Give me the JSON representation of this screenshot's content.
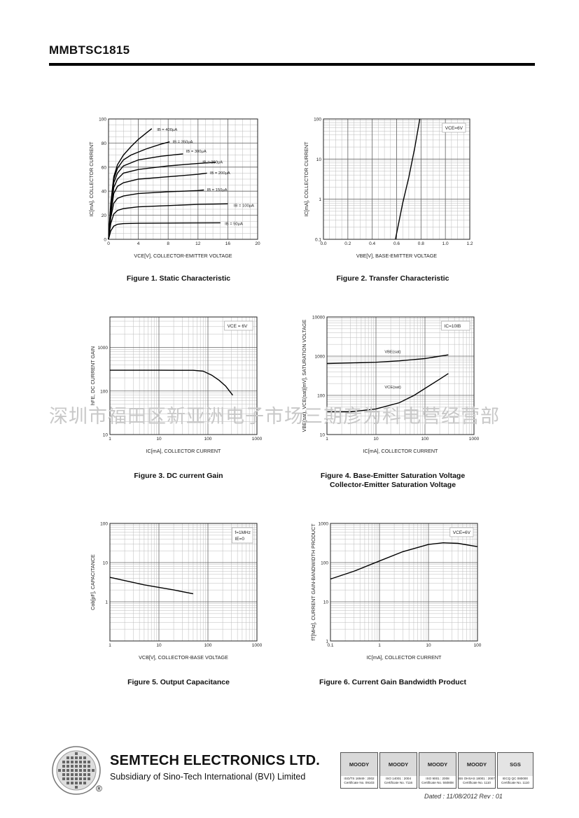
{
  "page": {
    "part_number": "MMBTSC1815"
  },
  "watermark": "深圳市福田区新亚洲电子市场三期彦为科电营经营部",
  "charts": [
    {
      "type": "line",
      "title": "Figure 1. Static Characteristic",
      "xlabel": "V_CE[V], COLLECTOR-EMITTER VOLTAGE",
      "ylabel": "I_C[mA], COLLECTOR CURRENT",
      "xscale": "linear",
      "yscale": "linear",
      "xlim": [
        0,
        20
      ],
      "ylim": [
        0,
        100
      ],
      "xticks": [
        0,
        4,
        8,
        12,
        16,
        20
      ],
      "yticks": [
        0,
        20,
        40,
        60,
        80,
        100
      ],
      "grid": true,
      "series": [
        {
          "name": "I_B = 400μA",
          "points": [
            [
              0,
              0
            ],
            [
              0.3,
              30
            ],
            [
              0.7,
              52
            ],
            [
              1.2,
              62
            ],
            [
              2,
              70
            ],
            [
              3,
              77
            ],
            [
              4,
              83
            ],
            [
              5,
              88
            ],
            [
              5.8,
              92
            ]
          ],
          "label_at": [
            6.5,
            90
          ]
        },
        {
          "name": "I_B = 350μA",
          "points": [
            [
              0,
              0
            ],
            [
              0.3,
              28
            ],
            [
              0.7,
              50
            ],
            [
              1.2,
              59
            ],
            [
              2,
              66
            ],
            [
              3,
              70
            ],
            [
              5,
              75
            ],
            [
              7,
              79
            ],
            [
              8.2,
              81
            ]
          ],
          "label_at": [
            8.6,
            80
          ]
        },
        {
          "name": "I_B = 300μA",
          "points": [
            [
              0,
              0
            ],
            [
              0.3,
              26
            ],
            [
              0.7,
              47
            ],
            [
              1.2,
              55
            ],
            [
              2,
              61
            ],
            [
              4,
              66
            ],
            [
              7,
              69
            ],
            [
              10,
              71
            ]
          ],
          "label_at": [
            10.4,
            72
          ]
        },
        {
          "name": "I_B = 250μA",
          "points": [
            [
              0,
              0
            ],
            [
              0.3,
              24
            ],
            [
              0.7,
              43
            ],
            [
              1.2,
              50
            ],
            [
              2,
              55
            ],
            [
              4,
              58
            ],
            [
              8,
              61
            ],
            [
              12,
              63
            ],
            [
              14.4,
              64
            ]
          ],
          "label_at": [
            12.6,
            63
          ]
        },
        {
          "name": "I_B = 200μA",
          "points": [
            [
              0,
              0
            ],
            [
              0.3,
              21
            ],
            [
              0.7,
              38
            ],
            [
              1.2,
              44
            ],
            [
              2,
              47
            ],
            [
              4,
              50
            ],
            [
              8,
              52
            ],
            [
              12,
              54
            ],
            [
              13.2,
              55
            ]
          ],
          "label_at": [
            13.6,
            54
          ]
        },
        {
          "name": "I_B = 150μA",
          "points": [
            [
              0,
              0
            ],
            [
              0.3,
              18
            ],
            [
              0.7,
              30
            ],
            [
              1.2,
              34
            ],
            [
              2,
              36
            ],
            [
              4,
              38
            ],
            [
              8,
              39.5
            ],
            [
              12,
              40.5
            ],
            [
              12.8,
              41
            ]
          ],
          "label_at": [
            13.2,
            40
          ]
        },
        {
          "name": "I_B = 100μA",
          "points": [
            [
              0,
              0
            ],
            [
              0.3,
              13
            ],
            [
              0.7,
              21
            ],
            [
              1.2,
              24
            ],
            [
              2,
              25.5
            ],
            [
              4,
              27
            ],
            [
              8,
              28
            ],
            [
              12,
              29
            ],
            [
              16,
              29.5
            ]
          ],
          "label_at": [
            16.8,
            27
          ]
        },
        {
          "name": "I_B = 50μA",
          "points": [
            [
              0,
              0
            ],
            [
              0.3,
              7
            ],
            [
              0.7,
              11
            ],
            [
              1.2,
              12.5
            ],
            [
              2,
              13
            ],
            [
              4,
              13.3
            ],
            [
              8,
              13.5
            ],
            [
              12,
              13.6
            ],
            [
              15,
              13.7
            ]
          ],
          "label_at": [
            15.6,
            12
          ]
        }
      ]
    },
    {
      "type": "line",
      "title": "Figure 2. Transfer Characteristic",
      "xlabel": "V_BE[V], BASE-EMITTER VOLTAGE",
      "ylabel": "I_C[mA], COLLECTOR CURRENT",
      "xscale": "linear",
      "yscale": "log",
      "xlim": [
        0,
        1.2
      ],
      "ylim": [
        0.1,
        100
      ],
      "xticks": [
        0,
        0.2,
        0.4,
        0.6,
        0.8,
        1.0,
        1.2
      ],
      "xtick_labels": [
        "0.0",
        "0.2",
        "0.4",
        "0.6",
        "0.8",
        "1.0",
        "1.2"
      ],
      "yticks": [
        0.1,
        1,
        10,
        100
      ],
      "ytick_labels": [
        "0.1",
        "1",
        "10",
        "100"
      ],
      "grid": true,
      "annotation": "V_CE=6V",
      "series": [
        {
          "name": "I_C",
          "points": [
            [
              0.59,
              0.1
            ],
            [
              0.65,
              0.8
            ],
            [
              0.7,
              3.5
            ],
            [
              0.75,
              20
            ],
            [
              0.79,
              100
            ]
          ]
        }
      ]
    },
    {
      "type": "line",
      "title": "Figure 3. DC current Gain",
      "xlabel": "I_C[mA], COLLECTOR CURRENT",
      "ylabel": "h_FE, DC CURRENT GAIN",
      "xscale": "log",
      "yscale": "log",
      "xlim": [
        1,
        1000
      ],
      "ylim": [
        10,
        5000
      ],
      "xticks": [
        1,
        10,
        100,
        1000
      ],
      "xtick_labels": [
        "1",
        "10",
        "100",
        "1000"
      ],
      "yticks": [
        10,
        100,
        1000
      ],
      "ytick_labels": [
        "10",
        "100",
        "1000"
      ],
      "grid": true,
      "annotation": "V_CE = 6V",
      "series": [
        {
          "name": "h_FE",
          "points": [
            [
              1,
              300
            ],
            [
              10,
              300
            ],
            [
              50,
              298
            ],
            [
              80,
              285
            ],
            [
              120,
              230
            ],
            [
              170,
              175
            ],
            [
              230,
              130
            ],
            [
              320,
              80
            ]
          ]
        }
      ]
    },
    {
      "type": "line",
      "title": "Figure 4. Base-Emitter Saturation Voltage",
      "title2": "Collector-Emitter Saturation Voltage",
      "xlabel": "I_C[mA], COLLECTOR CURRENT",
      "ylabel": "V_BE(sat), V_CE(sat)[mV], SATURATION VOLTAGE",
      "xscale": "log",
      "yscale": "log",
      "xlim": [
        1,
        1000
      ],
      "ylim": [
        10,
        10000
      ],
      "xticks": [
        1,
        10,
        100,
        1000
      ],
      "xtick_labels": [
        "1",
        "10",
        "100",
        "1000"
      ],
      "yticks": [
        10,
        100,
        1000,
        10000
      ],
      "ytick_labels": [
        "10",
        "100",
        "1000",
        "10000"
      ],
      "grid": true,
      "annotation": "I_C=10I_B",
      "series": [
        {
          "name": "V_BE(sat)",
          "points": [
            [
              1,
              650
            ],
            [
              3,
              670
            ],
            [
              10,
              700
            ],
            [
              30,
              760
            ],
            [
              100,
              870
            ],
            [
              200,
              1000
            ],
            [
              300,
              1080
            ]
          ],
          "label_at": [
            15,
            1200
          ]
        },
        {
          "name": "V_CE(sat)",
          "points": [
            [
              1,
              38
            ],
            [
              3,
              38
            ],
            [
              10,
              45
            ],
            [
              30,
              65
            ],
            [
              60,
              100
            ],
            [
              100,
              150
            ],
            [
              200,
              260
            ],
            [
              300,
              360
            ]
          ],
          "label_at": [
            15,
            150
          ]
        }
      ]
    },
    {
      "type": "line",
      "title": "Figure 5. Output Capacitance",
      "xlabel": "V_CB[V], COLLECTOR-BASE VOLTAGE",
      "ylabel": "C_ob[pF], CAPACITANCE",
      "xscale": "log",
      "yscale": "log",
      "xlim": [
        1,
        1000
      ],
      "ylim": [
        0.1,
        100
      ],
      "xticks": [
        1,
        10,
        100,
        1000
      ],
      "xtick_labels": [
        "1",
        "10",
        "100",
        "1000"
      ],
      "yticks": [
        1,
        10,
        100
      ],
      "ytick_labels": [
        "1",
        "10",
        "100"
      ],
      "grid": true,
      "annotations": [
        "f=1MHz",
        "I_E=0"
      ],
      "series": [
        {
          "name": "C_ob",
          "points": [
            [
              1,
              4.2
            ],
            [
              5,
              2.7
            ],
            [
              20,
              2.0
            ],
            [
              50,
              1.6
            ]
          ]
        }
      ]
    },
    {
      "type": "line",
      "title": "Figure 6. Current Gain Bandwidth Product",
      "xlabel": "I_C[mA], COLLECTOR CURRENT",
      "ylabel": "f_T[MHz], CURRENT GAIN-BANDWIDTH PRODUCT",
      "xscale": "log",
      "yscale": "log",
      "xlim": [
        0.1,
        100
      ],
      "ylim": [
        1,
        1000
      ],
      "xticks": [
        0.1,
        1,
        10,
        100
      ],
      "xtick_labels": [
        "0.1",
        "1",
        "10",
        "100"
      ],
      "yticks": [
        1,
        10,
        100,
        1000
      ],
      "ytick_labels": [
        "1",
        "10",
        "100",
        "1000"
      ],
      "grid": true,
      "annotation": "V_CE=6V",
      "series": [
        {
          "name": "f_T",
          "points": [
            [
              0.1,
              38
            ],
            [
              0.3,
              60
            ],
            [
              1,
              110
            ],
            [
              3,
              190
            ],
            [
              10,
              290
            ],
            [
              20,
              320
            ],
            [
              40,
              310
            ],
            [
              100,
              255
            ]
          ]
        }
      ]
    }
  ],
  "footer": {
    "company": "SEMTECH ELECTRONICS LTD.",
    "subsidiary": "Subsidiary of Sino-Tech International (BVI) Limited",
    "registered": "®",
    "dated": "Dated : 11/08/2012   Rev : 01",
    "certs": [
      {
        "name": "MOODY",
        "line1": "ISO/TS 16949 : 2002",
        "line2": "Certificate No. 09103"
      },
      {
        "name": "MOODY",
        "line1": "ISO 14001 : 2004",
        "line2": "Certificate No. 7116"
      },
      {
        "name": "MOODY",
        "line1": "ISO 9001 : 2008",
        "line2": "Certificate No. 550808"
      },
      {
        "name": "MOODY",
        "line1": "BS OHSAS 18001 : 2007",
        "line2": "Certificate No. 1110"
      },
      {
        "name": "SGS",
        "line1": "IECQ QC 080000",
        "line2": "Certificate No. 1110"
      }
    ]
  }
}
